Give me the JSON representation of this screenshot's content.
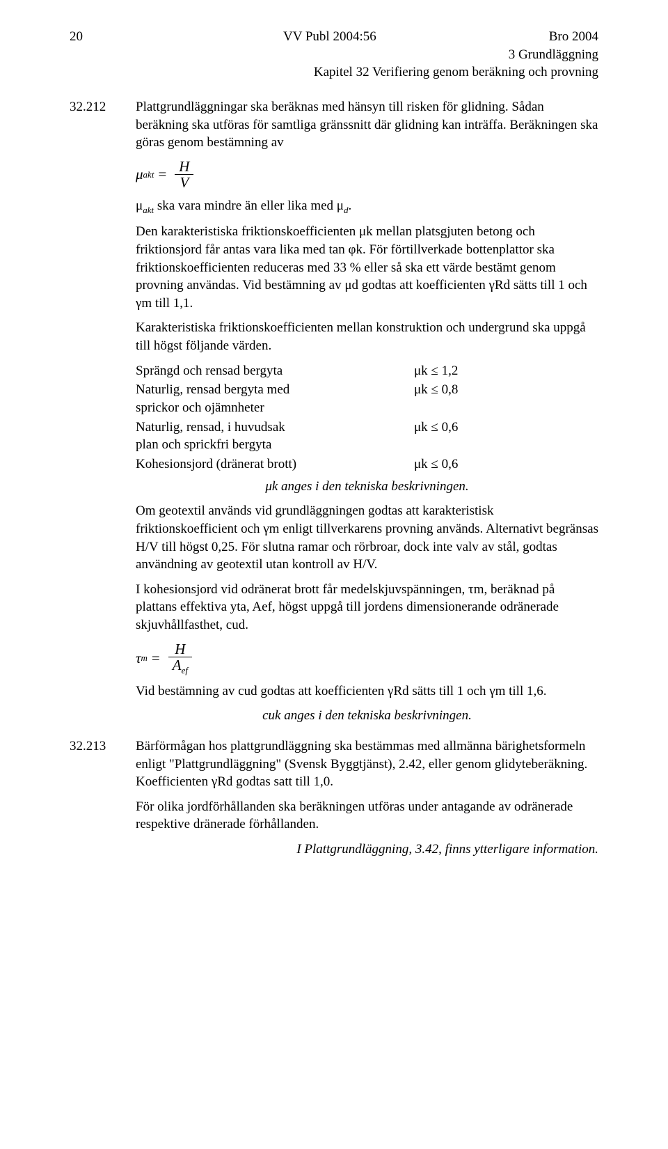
{
  "header": {
    "page_number": "20",
    "pub_ref": "VV Publ 2004:56",
    "doc_ref": "Bro 2004",
    "line2": "3 Grundläggning",
    "line3": "Kapitel 32 Verifiering genom beräkning och provning"
  },
  "s212": {
    "num": "32.212",
    "p1": "Plattgrundläggningar ska beräknas med hänsyn till risken för glidning. Sådan beräkning ska utföras för samtliga gränssnitt där glidning kan inträffa. Beräkningen ska göras genom bestämning av",
    "formula1": {
      "lhs_sub": "akt",
      "num": "H",
      "den": "V"
    },
    "p2a": "μ",
    "p2a_sub": "akt",
    "p2b": " ska vara mindre än eller lika med μ",
    "p2b_sub": "d",
    "p2c": ".",
    "p3": "Den karakteristiska friktionskoefficienten μk mellan platsgjuten betong och friktionsjord får antas vara lika med tan φk. För förtillverkade bottenplattor ska friktionskoefficienten reduceras med 33 % eller så ska ett värde bestämt genom provning användas. Vid bestämning av μd godtas att koefficienten γRd sätts till 1 och γm till 1,1.",
    "p4": "Karakteristiska friktionskoefficienten mellan konstruktion och undergrund ska uppgå till högst följande värden.",
    "tbl": {
      "r1a": "Sprängd och rensad bergyta",
      "r1b": "μk ≤ 1,2",
      "r2a": "Naturlig, rensad bergyta med",
      "r2b": "μk ≤ 0,8",
      "r2a2": "sprickor och ojämnheter",
      "r3a": "Naturlig, rensad, i huvudsak",
      "r3b": "μk ≤ 0,6",
      "r3a2": "plan och sprickfri bergyta",
      "r4a": "Kohesionsjord (dränerat brott)",
      "r4b": "μk ≤ 0,6"
    },
    "note_mu_k": "μk anges i den tekniska beskrivningen.",
    "p5": "Om geotextil används vid grundläggningen godtas att karakteristisk friktionskoefficient och γm enligt tillverkarens provning används. Alternativt begränsas H/V till högst 0,25. För slutna ramar och rörbroar, dock inte valv av stål, godtas användning av geotextil utan kontroll av H/V.",
    "p6": "I kohesionsjord vid odränerat brott får medelskjuvspänningen, τm, beräknad på plattans effektiva yta, Aef, högst uppgå till jordens dimensionerande odränerade skjuvhållfasthet, cud.",
    "formula2": {
      "lhs": "τ",
      "lhs_sub": "m",
      "num": "H",
      "den_a": "A",
      "den_sub": "ef"
    },
    "p7": "Vid bestämning av cud godtas att koefficienten γRd sätts till 1 och γm till 1,6.",
    "note_cuk": "cuk anges i den tekniska beskrivningen."
  },
  "s213": {
    "num": "32.213",
    "p1": "Bärförmågan hos plattgrundläggning ska bestämmas med allmänna bärighetsformeln enligt \"Plattgrundläggning\" (Svensk Byggtjänst), 2.42, eller genom glidyteberäkning. Koefficienten γRd godtas satt till 1,0.",
    "p2": "För olika jordförhållanden ska beräkningen utföras under antagande av odränerade respektive dränerade förhållanden.",
    "note": "I Plattgrundläggning, 3.42, finns ytterligare information."
  }
}
